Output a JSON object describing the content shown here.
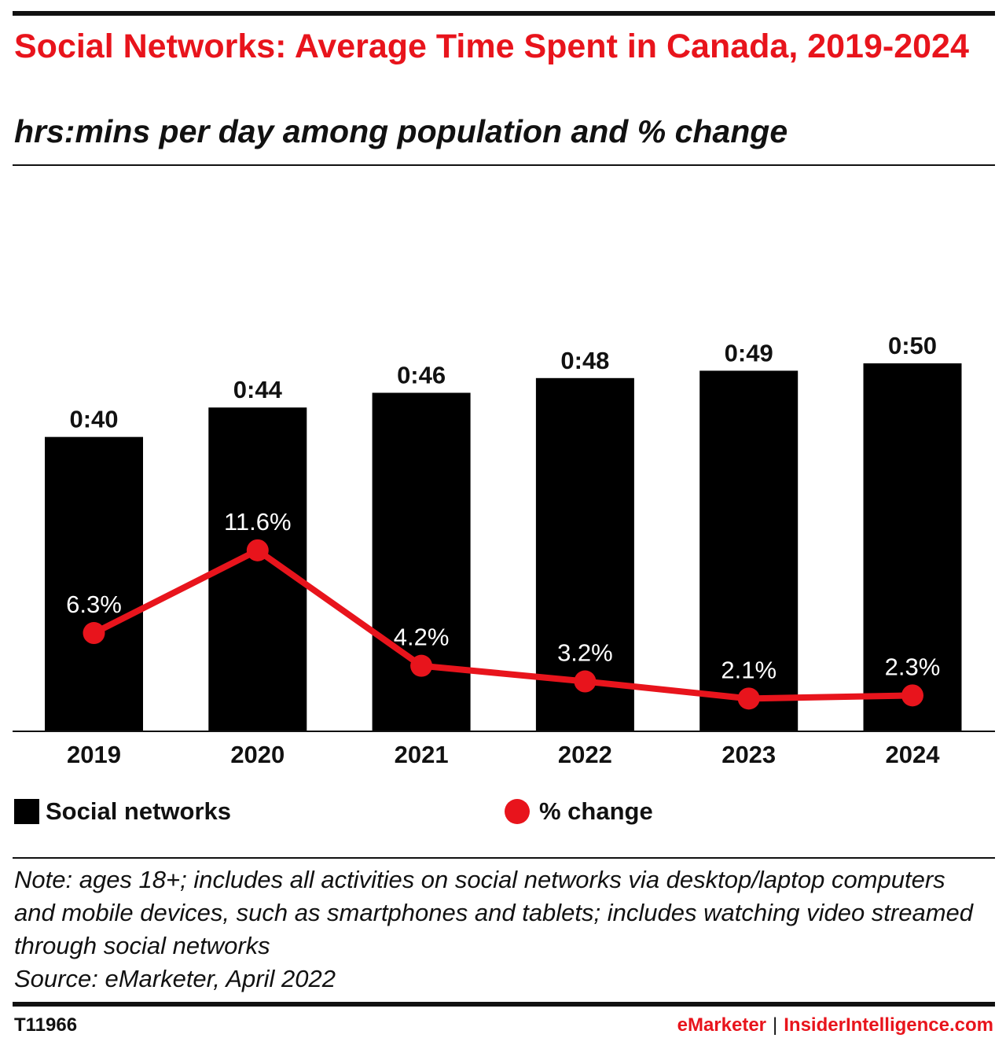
{
  "header": {
    "title": "Social Networks: Average Time Spent in Canada, 2019-2024",
    "subtitle": "hrs:mins per day among population and % change"
  },
  "colors": {
    "accent": "#e8141c",
    "bar": "#000000",
    "text": "#111111"
  },
  "chart_data": {
    "type": "bar",
    "title": "Social Networks: Average Time Spent in Canada, 2019-2024",
    "subtitle": "hrs:mins per day among population and % change",
    "categories": [
      "2019",
      "2020",
      "2021",
      "2022",
      "2023",
      "2024"
    ],
    "series": [
      {
        "name": "Social networks",
        "type": "bar",
        "values_minutes": [
          40,
          44,
          46,
          48,
          49,
          50
        ],
        "labels": [
          "0:40",
          "0:44",
          "0:46",
          "0:48",
          "0:49",
          "0:50"
        ],
        "color": "#000000"
      },
      {
        "name": "% change",
        "type": "line",
        "values": [
          6.3,
          11.6,
          4.2,
          3.2,
          2.1,
          2.3
        ],
        "labels": [
          "6.3%",
          "11.6%",
          "4.2%",
          "3.2%",
          "2.1%",
          "2.3%"
        ],
        "color": "#e8141c"
      }
    ],
    "bar_axis_minutes": [
      0,
      53
    ],
    "pct_axis": [
      0,
      25
    ],
    "legend_position": "bottom",
    "grid": false
  },
  "legend": {
    "bar_label": "Social networks",
    "line_label": "% change"
  },
  "notes": {
    "note": "Note: ages 18+; includes all activities on social networks via desktop/laptop computers and mobile devices, such as smartphones and tablets; includes watching video streamed through social networks",
    "source": "Source: eMarketer, April 2022"
  },
  "footer": {
    "chart_id": "T11966",
    "brand_1": "eMarketer",
    "separator": "|",
    "brand_2": "InsiderIntelligence.com"
  }
}
